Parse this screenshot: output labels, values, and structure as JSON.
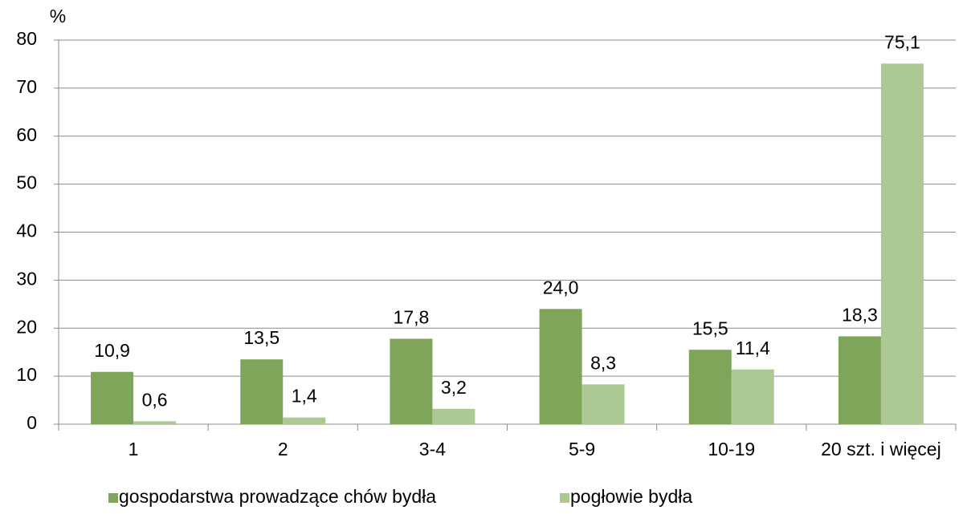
{
  "chart_data": {
    "type": "bar",
    "ylabel": "%",
    "categories": [
      "1",
      "2",
      "3-4",
      "5-9",
      "10-19",
      "20 szt. i więcej"
    ],
    "series": [
      {
        "name": "gospodarstwa prowadzące chów bydła",
        "color": "#7fa55a",
        "values": [
          10.9,
          13.5,
          17.8,
          24.0,
          15.5,
          18.3
        ],
        "value_labels": [
          "10,9",
          "13,5",
          "17,8",
          "24,0",
          "15,5",
          "18,3"
        ]
      },
      {
        "name": "pogłowie bydła",
        "color": "#adc993",
        "values": [
          0.6,
          1.4,
          3.2,
          8.3,
          11.4,
          75.1
        ],
        "value_labels": [
          "0,6",
          "1,4",
          "3,2",
          "8,3",
          "11,4",
          "75,1"
        ]
      }
    ],
    "ylim": [
      0,
      80
    ],
    "yticks": [
      0,
      10,
      20,
      30,
      40,
      50,
      60,
      70,
      80
    ],
    "grid": true,
    "legend": "bottom"
  }
}
